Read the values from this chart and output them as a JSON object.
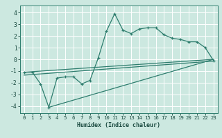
{
  "xlabel": "Humidex (Indice chaleur)",
  "background_color": "#cce8e0",
  "line_color": "#2e7d6e",
  "grid_color": "#ffffff",
  "xlim": [
    -0.5,
    23.5
  ],
  "ylim": [
    -4.6,
    4.6
  ],
  "xticks": [
    0,
    1,
    2,
    3,
    4,
    5,
    6,
    7,
    8,
    9,
    10,
    11,
    12,
    13,
    14,
    15,
    16,
    17,
    18,
    19,
    20,
    21,
    22,
    23
  ],
  "yticks": [
    -4,
    -3,
    -2,
    -1,
    0,
    1,
    2,
    3,
    4
  ],
  "main_x": [
    0,
    1,
    2,
    3,
    4,
    5,
    6,
    7,
    8,
    9,
    10,
    11,
    12,
    13,
    14,
    15,
    16,
    17,
    18,
    19,
    20,
    21,
    22,
    23
  ],
  "main_y": [
    -1.1,
    -1.1,
    -2.1,
    -4.1,
    -1.6,
    -1.5,
    -1.5,
    -2.1,
    -1.8,
    0.1,
    2.4,
    3.9,
    2.5,
    2.2,
    2.6,
    2.7,
    2.7,
    2.1,
    1.8,
    1.7,
    1.5,
    1.5,
    1.0,
    -0.1
  ],
  "line1_x": [
    0,
    23
  ],
  "line1_y": [
    -1.1,
    0.0
  ],
  "line2_x": [
    0,
    23
  ],
  "line2_y": [
    -1.35,
    -0.15
  ],
  "line3_x": [
    3,
    23
  ],
  "line3_y": [
    -4.1,
    0.0
  ],
  "xlabel_fontsize": 6.0,
  "tick_fontsize": 5.2,
  "ytick_fontsize": 5.8
}
